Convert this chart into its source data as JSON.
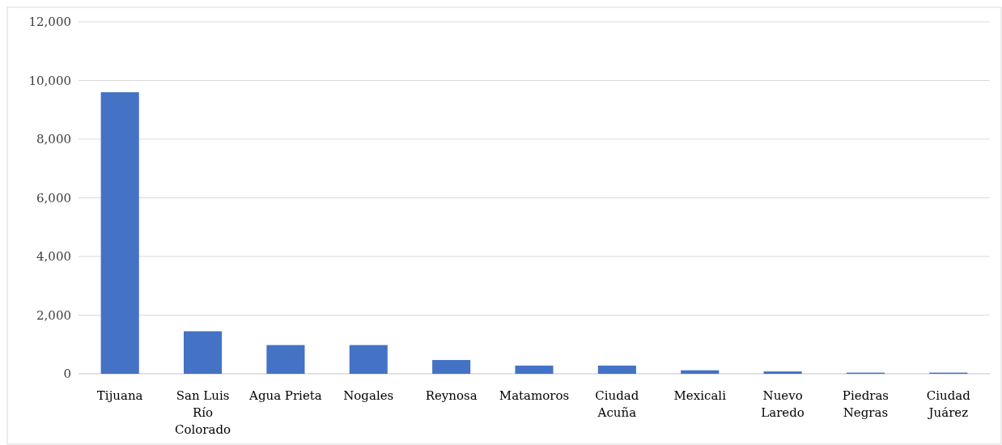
{
  "chart_data": {
    "type": "bar",
    "categories": [
      "Tijuana",
      "San Luis Río Colorado",
      "Agua Prieta",
      "Nogales",
      "Reynosa",
      "Matamoros",
      "Ciudad Acuña",
      "Mexicali",
      "Nuevo Laredo",
      "Piedras Negras",
      "Ciudad Juárez"
    ],
    "values": [
      9600,
      1450,
      980,
      980,
      470,
      280,
      280,
      120,
      80,
      40,
      40
    ],
    "color": "#4472c4",
    "ylim": [
      0,
      12000
    ],
    "yticks": [
      {
        "value": 0,
        "label": "0"
      },
      {
        "value": 2000,
        "label": "2,000"
      },
      {
        "value": 4000,
        "label": "4,000"
      },
      {
        "value": 6000,
        "label": "6,000"
      },
      {
        "value": 8000,
        "label": "8,000"
      },
      {
        "value": 10000,
        "label": "10,000"
      },
      {
        "value": 12000,
        "label": "12,000"
      }
    ],
    "grid": "y"
  }
}
